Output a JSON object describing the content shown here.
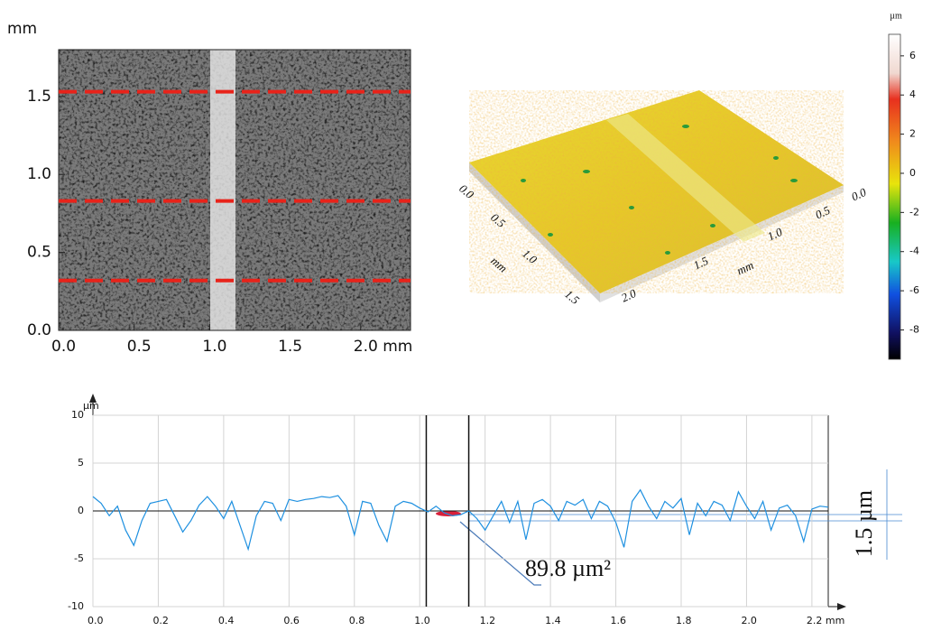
{
  "chart_data": [
    {
      "type": "image",
      "y_label": "mm",
      "xlim": [
        0,
        2.33
      ],
      "xticks": [
        {
          "value": 0,
          "label": "0.0"
        },
        0.5,
        {
          "value": 1,
          "label": "1.0"
        },
        1.5,
        {
          "value": 2,
          "label": "2.0 mm"
        }
      ],
      "ylim": [
        0,
        1.8
      ],
      "yticks": [
        {
          "value": 0,
          "label": "0.0"
        },
        0.5,
        {
          "value": 1,
          "label": "1.0"
        },
        1.5
      ],
      "hlines": [
        0.32,
        0.83,
        1.53
      ],
      "hline_color": "#e8231a"
    },
    {
      "type": "surface",
      "colorbar_label": "µm",
      "clim": [
        -9.5,
        7.1
      ],
      "cticks": [
        6,
        4,
        2,
        0,
        -2,
        -4,
        -6,
        -8
      ],
      "depth_ticks": [
        "0.0",
        "0.5",
        "1.0",
        "1.5"
      ],
      "width_ticks": [
        "2.0",
        "1.5",
        "1.0",
        "0.5",
        "0.0"
      ],
      "axis_labels": [
        "mm",
        "mm"
      ]
    },
    {
      "type": "line",
      "y_label": "µm",
      "color": "#1e90e0",
      "grid": true,
      "xlim": [
        0,
        2.25
      ],
      "ylim": [
        -10,
        10
      ],
      "xticks": [
        {
          "value": 0,
          "label": "0.0"
        },
        0.2,
        0.4,
        0.6,
        0.8,
        {
          "value": 1,
          "label": "1.0"
        },
        1.2,
        1.4,
        1.6,
        1.8,
        {
          "value": 2,
          "label": "2.0"
        },
        {
          "value": 2.2,
          "label": "2.2 mm"
        }
      ],
      "yticks": [
        -10,
        -5,
        0,
        5,
        10
      ],
      "vlines": [
        1.02,
        1.15
      ],
      "annotations": [
        "89.8 µm²",
        "1.5 µm"
      ],
      "x": [
        0,
        0.025,
        0.05,
        0.075,
        0.1,
        0.125,
        0.15,
        0.175,
        0.2,
        0.225,
        0.25,
        0.275,
        0.3,
        0.325,
        0.35,
        0.375,
        0.4,
        0.425,
        0.45,
        0.475,
        0.5,
        0.525,
        0.55,
        0.575,
        0.6,
        0.625,
        0.65,
        0.675,
        0.7,
        0.725,
        0.75,
        0.775,
        0.8,
        0.825,
        0.85,
        0.875,
        0.9,
        0.925,
        0.95,
        0.975,
        1,
        1.025,
        1.05,
        1.075,
        1.1,
        1.125,
        1.15,
        1.175,
        1.2,
        1.225,
        1.25,
        1.275,
        1.3,
        1.325,
        1.35,
        1.375,
        1.4,
        1.425,
        1.45,
        1.475,
        1.5,
        1.525,
        1.55,
        1.575,
        1.6,
        1.625,
        1.65,
        1.675,
        1.7,
        1.725,
        1.75,
        1.775,
        1.8,
        1.825,
        1.85,
        1.875,
        1.9,
        1.925,
        1.95,
        1.975,
        2,
        2.025,
        2.05,
        2.075,
        2.1,
        2.125,
        2.15,
        2.175,
        2.2,
        2.225,
        2.25
      ],
      "values": [
        1.5,
        0.8,
        -0.5,
        0.5,
        -2.0,
        -3.6,
        -1.0,
        0.8,
        1.0,
        1.2,
        -0.5,
        -2.2,
        -1.0,
        0.6,
        1.5,
        0.5,
        -0.8,
        1.0,
        -1.5,
        -4.0,
        -0.5,
        1.0,
        0.8,
        -1.0,
        1.2,
        1.0,
        1.2,
        1.3,
        1.5,
        1.4,
        1.6,
        0.5,
        -2.5,
        1.0,
        0.8,
        -1.5,
        -3.2,
        0.5,
        1.0,
        0.8,
        0.3,
        -0.1,
        0.5,
        -0.2,
        -0.5,
        -0.4,
        0.0,
        -0.8,
        -2.0,
        -0.5,
        1.0,
        -1.2,
        1.0,
        -3.0,
        0.8,
        1.2,
        0.5,
        -1.0,
        1.0,
        0.6,
        1.2,
        -0.8,
        1.0,
        0.5,
        -1.2,
        -3.8,
        1.0,
        2.2,
        0.5,
        -0.8,
        1.0,
        0.3,
        1.3,
        -2.5,
        0.8,
        -0.5,
        1.0,
        0.6,
        -1.0,
        2.0,
        0.5,
        -0.8,
        1.0,
        -2.0,
        0.3,
        0.6,
        -0.5,
        -3.2,
        0.2,
        0.5,
        0.4
      ]
    }
  ]
}
